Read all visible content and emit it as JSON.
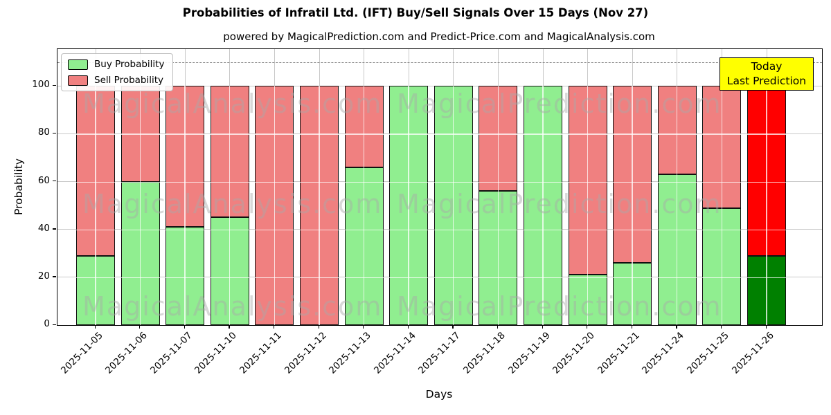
{
  "figure": {
    "title": "Probabilities of Infratil Ltd. (IFT) Buy/Sell Signals Over 15 Days (Nov 27)",
    "subtitle": "powered by MagicalPrediction.com and Predict-Price.com and MagicalAnalysis.com"
  },
  "legend": {
    "items": [
      {
        "label": "Buy Probability",
        "color": "#90EE90"
      },
      {
        "label": "Sell Probability",
        "color": "#F08080"
      }
    ]
  },
  "annotation_box": {
    "line1": "Today",
    "line2": "Last Prediction",
    "bg_color": "#FFFF00"
  },
  "watermarks": {
    "left": "MagicalAnalysis.com",
    "right": "MagicalPrediction.com"
  },
  "axes": {
    "x_label": "Days",
    "y_label": "Probability",
    "y_ticks": [
      0,
      20,
      40,
      60,
      80,
      100
    ],
    "dashed_line_value": 110
  },
  "chart_data": {
    "type": "bar",
    "stacked": true,
    "title": "Probabilities of Infratil Ltd. (IFT) Buy/Sell Signals Over 15 Days (Nov 27)",
    "xlabel": "Days",
    "ylabel": "Probability",
    "ylim": [
      0,
      115
    ],
    "grid": true,
    "legend_position": "upper left",
    "categories": [
      "2025-11-05",
      "2025-11-06",
      "2025-11-07",
      "2025-11-10",
      "2025-11-11",
      "2025-11-12",
      "2025-11-13",
      "2025-11-14",
      "2025-11-17",
      "2025-11-18",
      "2025-11-19",
      "2025-11-20",
      "2025-11-21",
      "2025-11-24",
      "2025-11-25",
      "2025-11-26"
    ],
    "series": [
      {
        "name": "Buy Probability",
        "color": "#90EE90",
        "values": [
          29,
          60,
          41,
          45,
          0,
          0,
          66,
          100,
          100,
          56,
          100,
          21,
          26,
          63,
          49,
          29
        ]
      },
      {
        "name": "Sell Probability",
        "color": "#F08080",
        "values": [
          71,
          40,
          59,
          55,
          100,
          100,
          34,
          0,
          0,
          44,
          0,
          79,
          74,
          37,
          51,
          71
        ]
      }
    ],
    "highlight_last_bar": {
      "buy_color": "#008000",
      "sell_color": "#FF0000",
      "annotation": "Today Last Prediction"
    },
    "dashed_reference_line": 110
  }
}
